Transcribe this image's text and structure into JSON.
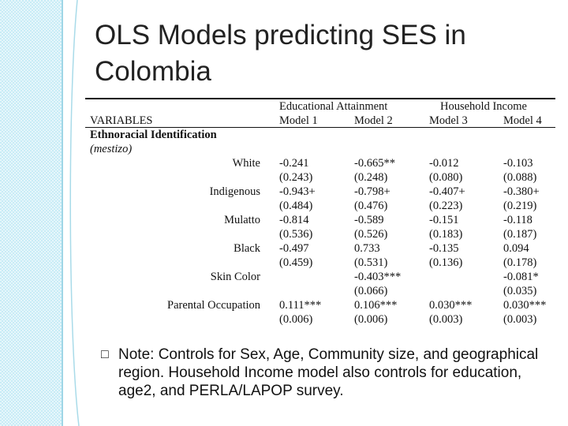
{
  "slide": {
    "title": "OLS Models predicting SES in Colombia"
  },
  "table": {
    "group_headers": [
      "Educational Attainment",
      "Household Income"
    ],
    "variables_label": "VARIABLES",
    "models": [
      "Model 1",
      "Model 2",
      "Model 3",
      "Model 4"
    ],
    "section_heading": "Ethnoracial Identification",
    "reference_category": "(mestizo)",
    "rows": [
      {
        "label": "White",
        "coef": [
          "-0.241",
          "-0.665**",
          "-0.012",
          "-0.103"
        ],
        "se": [
          "(0.243)",
          "(0.248)",
          "(0.080)",
          "(0.088)"
        ]
      },
      {
        "label": "Indigenous",
        "coef": [
          "-0.943+",
          "-0.798+",
          "-0.407+",
          "-0.380+"
        ],
        "se": [
          "(0.484)",
          "(0.476)",
          "(0.223)",
          "(0.219)"
        ]
      },
      {
        "label": "Mulatto",
        "coef": [
          "-0.814",
          "-0.589",
          "-0.151",
          "-0.118"
        ],
        "se": [
          "(0.536)",
          "(0.526)",
          "(0.183)",
          "(0.187)"
        ]
      },
      {
        "label": "Black",
        "coef": [
          "-0.497",
          "0.733",
          "-0.135",
          "0.094"
        ],
        "se": [
          "(0.459)",
          "(0.531)",
          "(0.136)",
          "(0.178)"
        ]
      },
      {
        "label": "Skin Color",
        "coef": [
          "",
          "-0.403***",
          "",
          "-0.081*"
        ],
        "se": [
          "",
          "(0.066)",
          "",
          "(0.035)"
        ]
      },
      {
        "label": "Parental Occupation",
        "coef": [
          "0.111***",
          "0.106***",
          "0.030***",
          "0.030***"
        ],
        "se": [
          "(0.006)",
          "(0.006)",
          "(0.003)",
          "(0.003)"
        ]
      }
    ]
  },
  "note": {
    "bullet": "",
    "text": "Note: Controls for Sex,  Age, Community size, and geographical region. Household Income model also controls for education, age2, and PERLA/LAPOP survey."
  },
  "colors": {
    "sidebar": "#c8ecf6",
    "accent_line": "#7fc7dc"
  }
}
